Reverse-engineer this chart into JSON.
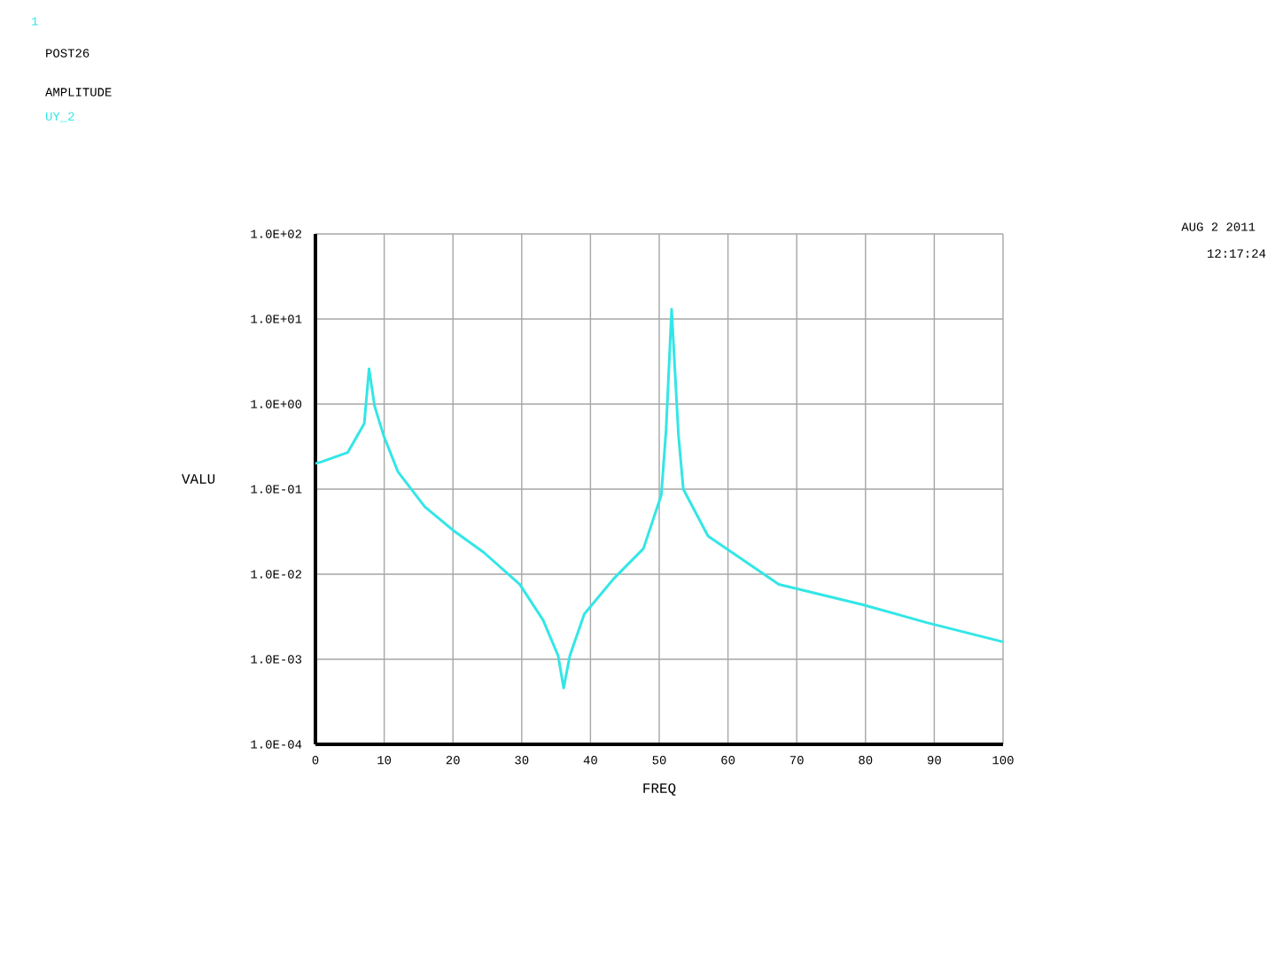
{
  "chart_data": {
    "type": "line",
    "xlabel": "FREQ",
    "ylabel": "VALU",
    "annotations": [
      "1",
      "POST26",
      "AMPLITUDE",
      "AUG  2 2011",
      "12:17:24"
    ],
    "log": "y",
    "grid": true,
    "marker": "none",
    "line_style": "solid",
    "xlim": [
      0,
      100
    ],
    "ylim": [
      0.0001,
      100
    ],
    "xticks": [
      0,
      10,
      20,
      30,
      40,
      50,
      60,
      70,
      80,
      90,
      100
    ],
    "yticks": [
      {
        "value": 0.0001,
        "label": "1.0E-04"
      },
      {
        "value": 0.001,
        "label": "1.0E-03"
      },
      {
        "value": 0.01,
        "label": "1.0E-02"
      },
      {
        "value": 0.1,
        "label": "1.0E-01"
      },
      {
        "value": 1,
        "label": "1.0E+00"
      },
      {
        "value": 10,
        "label": "1.0E+01"
      },
      {
        "value": 100,
        "label": "1.0E+02"
      }
    ],
    "series": [
      {
        "name": "UY_2",
        "color": "#33e6e6",
        "x": [
          0,
          0.9,
          4.7,
          7.1,
          7.8,
          8.6,
          9.9,
          12.0,
          15.9,
          20.2,
          24.5,
          29.7,
          33.1,
          35.3,
          36.1,
          37.0,
          39.1,
          43.4,
          47.7,
          50.3,
          51.0,
          51.8,
          52.8,
          53.5,
          57.1,
          62.3,
          67.4,
          79.5,
          88.9,
          100
        ],
        "values": [
          0.2,
          0.21,
          0.27,
          0.59,
          2.6,
          0.95,
          0.43,
          0.16,
          0.062,
          0.032,
          0.018,
          0.0076,
          0.0029,
          0.0011,
          0.00046,
          0.0011,
          0.0034,
          0.0089,
          0.02,
          0.085,
          0.5,
          13,
          0.43,
          0.1,
          0.028,
          0.0145,
          0.0076,
          0.0044,
          0.0027,
          0.0016
        ]
      }
    ]
  }
}
